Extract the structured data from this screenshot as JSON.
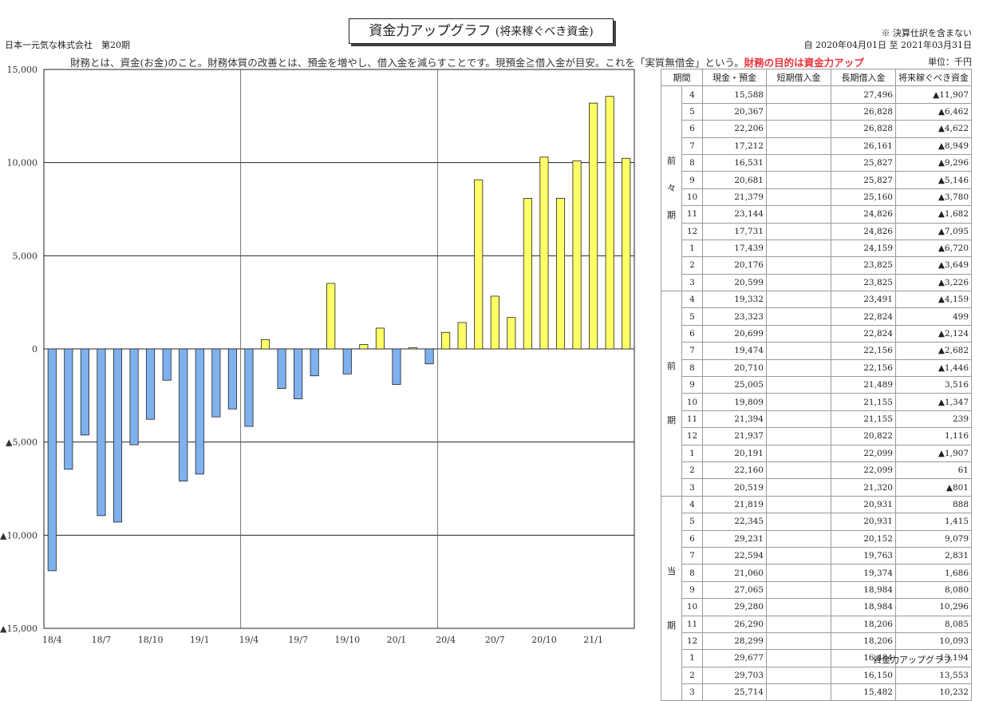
{
  "header": {
    "title": "資金力アップグラフ",
    "title_sub": "(将来稼ぐべき資金)",
    "company": "日本一元気な株式会社　第20期",
    "note": "※ 決算仕訳を含まない",
    "period": "自 2020年04月01日 至 2021年03月31日",
    "unit": "単位：千円",
    "description": "財務とは、資金(お金)のこと。財務体質の改善とは、預金を増やし、借入金を減らすことです。現預金≧借入金が目安。これを「実質無借金」という。",
    "description_highlight": "財務の目的は資金力アップ"
  },
  "footer": "資金力アップグラフ",
  "chart_data": {
    "type": "bar",
    "y_ticks": [
      "15,000",
      "10,000",
      "5,000",
      "0",
      "▲5,000",
      "▲10,000",
      "▲15,000"
    ],
    "ylim": [
      -15000,
      15000
    ],
    "x_tick_labels": [
      "18/4",
      "18/7",
      "18/10",
      "19/1",
      "19/4",
      "19/7",
      "19/10",
      "20/1",
      "20/4",
      "20/7",
      "20/10",
      "21/1"
    ],
    "values": [
      -11907,
      -6462,
      -4622,
      -8949,
      -9296,
      -5146,
      -3780,
      -1682,
      -7095,
      -6720,
      -3649,
      -3226,
      -4159,
      499,
      -2124,
      -2682,
      -1446,
      3516,
      -1347,
      239,
      1116,
      -1907,
      61,
      -801,
      888,
      1415,
      9079,
      2831,
      1686,
      8080,
      10296,
      8085,
      10093,
      13194,
      13553,
      10232
    ],
    "colors": {
      "negative": "#7fb1ef",
      "positive": "#ffff66"
    }
  },
  "table": {
    "headers": [
      "期間",
      "現金・預金",
      "短期借入金",
      "長期借入金",
      "将来稼ぐべき資金"
    ],
    "groups": [
      {
        "label_chars": [
          "前",
          "々",
          "期"
        ],
        "rows": [
          {
            "month": "4",
            "cash": "15,588",
            "short": "",
            "long": "27,496",
            "future": "▲11,907"
          },
          {
            "month": "5",
            "cash": "20,367",
            "short": "",
            "long": "26,828",
            "future": "▲6,462"
          },
          {
            "month": "6",
            "cash": "22,206",
            "short": "",
            "long": "26,828",
            "future": "▲4,622"
          },
          {
            "month": "7",
            "cash": "17,212",
            "short": "",
            "long": "26,161",
            "future": "▲8,949"
          },
          {
            "month": "8",
            "cash": "16,531",
            "short": "",
            "long": "25,827",
            "future": "▲9,296"
          },
          {
            "month": "9",
            "cash": "20,681",
            "short": "",
            "long": "25,827",
            "future": "▲5,146"
          },
          {
            "month": "10",
            "cash": "21,379",
            "short": "",
            "long": "25,160",
            "future": "▲3,780"
          },
          {
            "month": "11",
            "cash": "23,144",
            "short": "",
            "long": "24,826",
            "future": "▲1,682"
          },
          {
            "month": "12",
            "cash": "17,731",
            "short": "",
            "long": "24,826",
            "future": "▲7,095"
          },
          {
            "month": "1",
            "cash": "17,439",
            "short": "",
            "long": "24,159",
            "future": "▲6,720"
          },
          {
            "month": "2",
            "cash": "20,176",
            "short": "",
            "long": "23,825",
            "future": "▲3,649"
          },
          {
            "month": "3",
            "cash": "20,599",
            "short": "",
            "long": "23,825",
            "future": "▲3,226"
          }
        ]
      },
      {
        "label_chars": [
          "前",
          "",
          "期"
        ],
        "rows": [
          {
            "month": "4",
            "cash": "19,332",
            "short": "",
            "long": "23,491",
            "future": "▲4,159"
          },
          {
            "month": "5",
            "cash": "23,323",
            "short": "",
            "long": "22,824",
            "future": "499"
          },
          {
            "month": "6",
            "cash": "20,699",
            "short": "",
            "long": "22,824",
            "future": "▲2,124"
          },
          {
            "month": "7",
            "cash": "19,474",
            "short": "",
            "long": "22,156",
            "future": "▲2,682"
          },
          {
            "month": "8",
            "cash": "20,710",
            "short": "",
            "long": "22,156",
            "future": "▲1,446"
          },
          {
            "month": "9",
            "cash": "25,005",
            "short": "",
            "long": "21,489",
            "future": "3,516"
          },
          {
            "month": "10",
            "cash": "19,809",
            "short": "",
            "long": "21,155",
            "future": "▲1,347"
          },
          {
            "month": "11",
            "cash": "21,394",
            "short": "",
            "long": "21,155",
            "future": "239"
          },
          {
            "month": "12",
            "cash": "21,937",
            "short": "",
            "long": "20,822",
            "future": "1,116"
          },
          {
            "month": "1",
            "cash": "20,191",
            "short": "",
            "long": "22,099",
            "future": "▲1,907"
          },
          {
            "month": "2",
            "cash": "22,160",
            "short": "",
            "long": "22,099",
            "future": "61"
          },
          {
            "month": "3",
            "cash": "20,519",
            "short": "",
            "long": "21,320",
            "future": "▲801"
          }
        ]
      },
      {
        "label_chars": [
          "当",
          "",
          "期"
        ],
        "rows": [
          {
            "month": "4",
            "cash": "21,819",
            "short": "",
            "long": "20,931",
            "future": "888"
          },
          {
            "month": "5",
            "cash": "22,345",
            "short": "",
            "long": "20,931",
            "future": "1,415"
          },
          {
            "month": "6",
            "cash": "29,231",
            "short": "",
            "long": "20,152",
            "future": "9,079"
          },
          {
            "month": "7",
            "cash": "22,594",
            "short": "",
            "long": "19,763",
            "future": "2,831"
          },
          {
            "month": "8",
            "cash": "21,060",
            "short": "",
            "long": "19,374",
            "future": "1,686"
          },
          {
            "month": "9",
            "cash": "27,065",
            "short": "",
            "long": "18,984",
            "future": "8,080"
          },
          {
            "month": "10",
            "cash": "29,280",
            "short": "",
            "long": "18,984",
            "future": "10,296"
          },
          {
            "month": "11",
            "cash": "26,290",
            "short": "",
            "long": "18,206",
            "future": "8,085"
          },
          {
            "month": "12",
            "cash": "28,299",
            "short": "",
            "long": "18,206",
            "future": "10,093"
          },
          {
            "month": "1",
            "cash": "29,677",
            "short": "",
            "long": "16,484",
            "future": "13,194"
          },
          {
            "month": "2",
            "cash": "29,703",
            "short": "",
            "long": "16,150",
            "future": "13,553"
          },
          {
            "month": "3",
            "cash": "25,714",
            "short": "",
            "long": "15,482",
            "future": "10,232"
          }
        ]
      }
    ]
  }
}
